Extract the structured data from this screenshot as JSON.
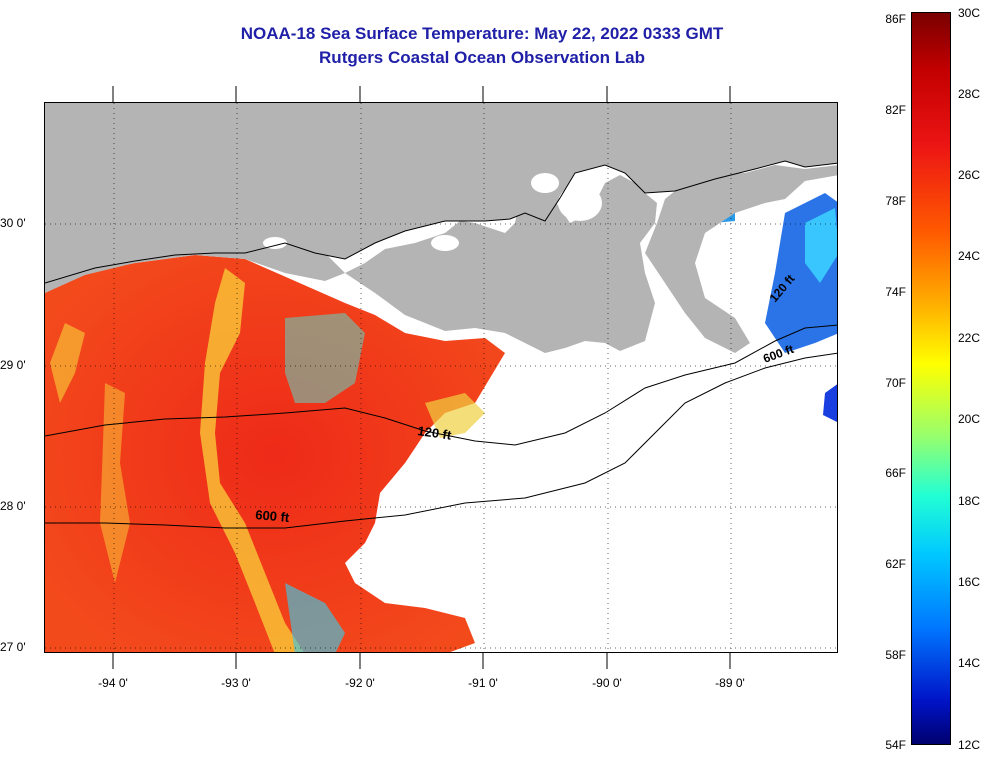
{
  "title_line1": "NOAA-18 Sea Surface Temperature:  May 22, 2022 0333 GMT",
  "title_line2": "Rutgers Coastal Ocean Observation Lab",
  "longitude_labels": [
    "-94 0'",
    "-93 0'",
    "-92 0'",
    "-91 0'",
    "-90 0'",
    "-89 0'"
  ],
  "latitude_labels": [
    "30 0'",
    "29 0'",
    "28 0'",
    "27 0'"
  ],
  "isobath_labels": [
    "120 ft",
    "600 ft",
    "120 ft",
    "600 ft"
  ],
  "colorbar": {
    "fahrenheit_labels": [
      "86F",
      "82F",
      "78F",
      "74F",
      "70F",
      "66F",
      "62F",
      "58F",
      "54F"
    ],
    "celsius_labels": [
      "30C",
      "28C",
      "26C",
      "24C",
      "22C",
      "20C",
      "18C",
      "16C",
      "14C",
      "12C"
    ],
    "range_c": [
      12,
      30
    ],
    "range_f": [
      54,
      86
    ]
  },
  "colors": {
    "title": "#1f1fa8",
    "land": "#b4b4b4",
    "cloud": "#ffffff",
    "warm_water": "#f0281e",
    "cool_water": "#2a74e8"
  }
}
